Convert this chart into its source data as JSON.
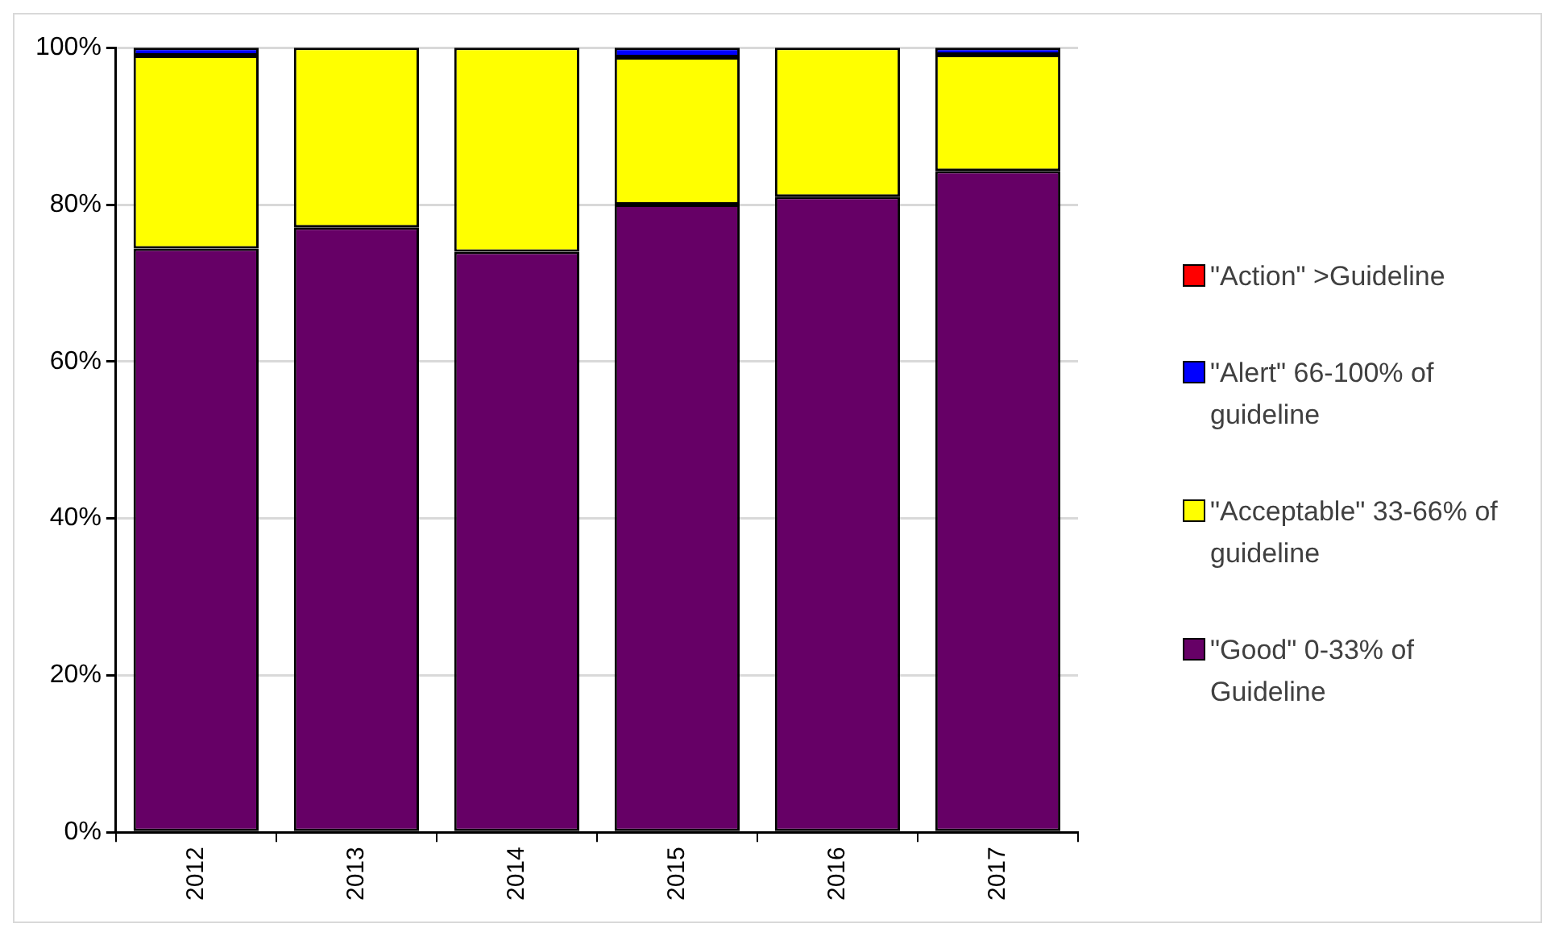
{
  "chart_data": {
    "type": "bar",
    "stacked": true,
    "categories": [
      "2012",
      "2013",
      "2014",
      "2015",
      "2016",
      "2017"
    ],
    "series": [
      {
        "name": "\"Good\" 0-33% of Guideline",
        "color": "#660066",
        "values": [
          74.4,
          77.1,
          74.0,
          80.0,
          81.0,
          84.3
        ]
      },
      {
        "name": "\"Acceptable\" 33-66% of guideline",
        "color": "#ffff00",
        "values": [
          24.6,
          22.9,
          26.0,
          18.8,
          19.0,
          14.8
        ]
      },
      {
        "name": "\"Alert\" 66-100% of guideline",
        "color": "#0000ff",
        "values": [
          1.0,
          0,
          0,
          1.2,
          0,
          0.9
        ]
      },
      {
        "name": "\"Action\" >Guideline",
        "color": "#ff0000",
        "values": [
          0,
          0,
          0,
          0,
          0,
          0
        ]
      }
    ],
    "ylim": [
      0,
      100
    ],
    "yticks": [
      {
        "value": 0,
        "label": "0%"
      },
      {
        "value": 20,
        "label": "20%"
      },
      {
        "value": 40,
        "label": "40%"
      },
      {
        "value": 60,
        "label": "60%"
      },
      {
        "value": 80,
        "label": "80%"
      },
      {
        "value": 100,
        "label": "100%"
      }
    ],
    "grid": "y",
    "legend": "right"
  }
}
